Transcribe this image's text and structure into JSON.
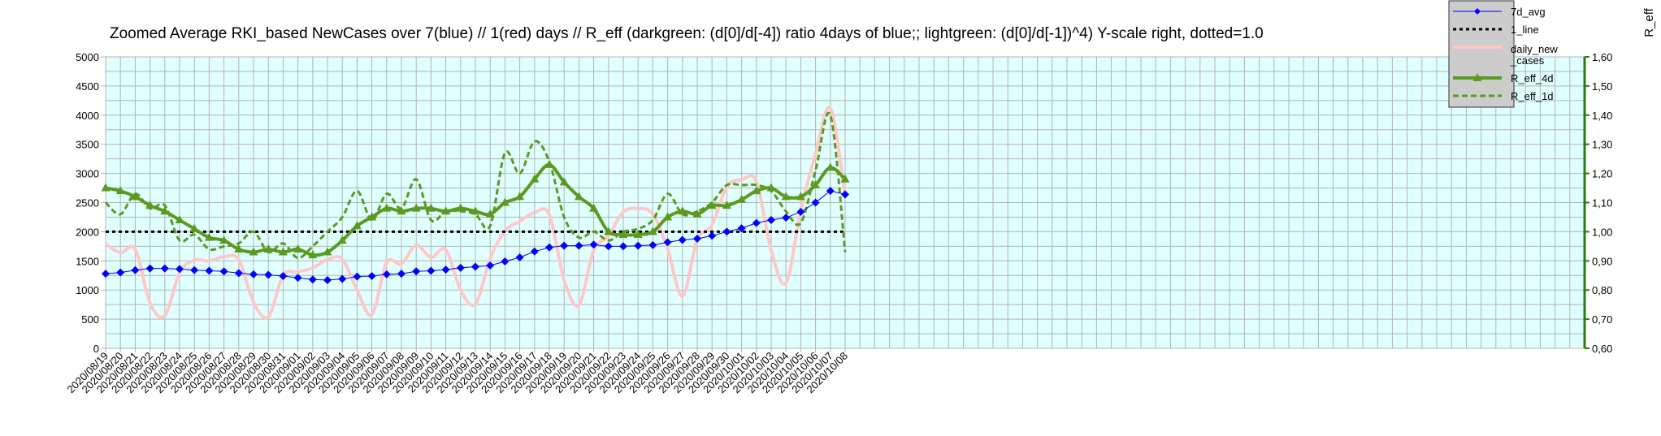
{
  "chart_data": {
    "type": "line",
    "title": "Zoomed Average RKI_based NewCases over 7(blue) // 1(red) days //  R_eff (darkgreen: (d[0]/d[-4]) ratio 4days of blue;; lightgreen: (d[0]/d[-1])^4) Y-scale right, dotted=1.0",
    "y2label": "R_eff",
    "ylim": [
      0,
      5000
    ],
    "y2lim": [
      0.6,
      1.6
    ],
    "yticks": [
      "0",
      "500",
      "1000",
      "1500",
      "2000",
      "2500",
      "3000",
      "3500",
      "4000",
      "4500",
      "5000"
    ],
    "y2ticks": [
      "0,60",
      "0,70",
      "0,80",
      "0,90",
      "1,00",
      "1,10",
      "1,20",
      "1,30",
      "1,40",
      "1,50",
      "1,60"
    ],
    "grid": true,
    "legend_position": "top-right",
    "categories": [
      "2020/08/19",
      "2020/08/20",
      "2020/08/21",
      "2020/08/22",
      "2020/08/23",
      "2020/08/24",
      "2020/08/25",
      "2020/08/26",
      "2020/08/27",
      "2020/08/28",
      "2020/08/29",
      "2020/08/30",
      "2020/08/31",
      "2020/09/01",
      "2020/09/02",
      "2020/09/03",
      "2020/09/04",
      "2020/09/05",
      "2020/09/06",
      "2020/09/07",
      "2020/09/08",
      "2020/09/09",
      "2020/09/10",
      "2020/09/11",
      "2020/09/12",
      "2020/09/13",
      "2020/09/14",
      "2020/09/15",
      "2020/09/16",
      "2020/09/17",
      "2020/09/18",
      "2020/09/19",
      "2020/09/20",
      "2020/09/21",
      "2020/09/22",
      "2020/09/23",
      "2020/09/24",
      "2020/09/25",
      "2020/09/26",
      "2020/09/27",
      "2020/09/28",
      "2020/09/29",
      "2020/09/30",
      "2020/10/01",
      "2020/10/02",
      "2020/10/03",
      "2020/10/04",
      "2020/10/05",
      "2020/10/06",
      "2020/10/07",
      "2020/10/08"
    ],
    "series": [
      {
        "name": "7d_avg",
        "axis": "left",
        "color": "#0000ff",
        "values": [
          1280,
          1300,
          1340,
          1370,
          1370,
          1360,
          1340,
          1330,
          1320,
          1290,
          1270,
          1260,
          1240,
          1210,
          1180,
          1170,
          1190,
          1230,
          1240,
          1270,
          1280,
          1320,
          1330,
          1350,
          1380,
          1400,
          1420,
          1490,
          1560,
          1660,
          1730,
          1760,
          1760,
          1780,
          1750,
          1750,
          1760,
          1770,
          1820,
          1860,
          1880,
          1930,
          2000,
          2060,
          2150,
          2200,
          2240,
          2340,
          2500,
          2700,
          2640
        ]
      },
      {
        "name": "1_line",
        "axis": "left",
        "color": "#000000",
        "values": [
          2000,
          2000,
          2000,
          2000,
          2000,
          2000,
          2000,
          2000,
          2000,
          2000,
          2000,
          2000,
          2000,
          2000,
          2000,
          2000,
          2000,
          2000,
          2000,
          2000,
          2000,
          2000,
          2000,
          2000,
          2000,
          2000,
          2000,
          2000,
          2000,
          2000,
          2000,
          2000,
          2000,
          2000,
          2000,
          2000,
          2000,
          2000,
          2000,
          2000,
          2000,
          2000,
          2000,
          2000,
          2000,
          2000,
          2000,
          2000,
          2000,
          2000,
          2000
        ]
      },
      {
        "name": "daily_new_cases",
        "axis": "left",
        "color": "#ffc8c8",
        "values": [
          1790,
          1640,
          1700,
          780,
          560,
          1300,
          1510,
          1500,
          1570,
          1520,
          790,
          540,
          1250,
          1310,
          1380,
          1520,
          1530,
          1000,
          580,
          1470,
          1450,
          1770,
          1560,
          1690,
          1000,
          760,
          1540,
          2010,
          2180,
          2330,
          2290,
          1170,
          740,
          1680,
          1930,
          2340,
          2400,
          2300,
          1710,
          890,
          1860,
          2120,
          2770,
          2890,
          2860,
          1680,
          1120,
          2370,
          3340,
          4120,
          2620
        ]
      },
      {
        "name": "R_eff_4d",
        "axis": "right",
        "color": "#5a9a1e",
        "values": [
          1.15,
          1.14,
          1.12,
          1.09,
          1.07,
          1.04,
          1.01,
          0.98,
          0.97,
          0.94,
          0.93,
          0.94,
          0.93,
          0.94,
          0.92,
          0.93,
          0.97,
          1.02,
          1.05,
          1.08,
          1.07,
          1.08,
          1.08,
          1.07,
          1.08,
          1.07,
          1.06,
          1.1,
          1.12,
          1.18,
          1.23,
          1.17,
          1.12,
          1.08,
          1.0,
          0.99,
          0.99,
          1.0,
          1.05,
          1.07,
          1.06,
          1.09,
          1.09,
          1.11,
          1.14,
          1.15,
          1.12,
          1.12,
          1.16,
          1.22,
          1.18
        ]
      },
      {
        "name": "R_eff_1d",
        "axis": "right",
        "color": "#5a9a1e",
        "values": [
          1.1,
          1.06,
          1.13,
          1.08,
          1.09,
          0.97,
          0.99,
          0.94,
          0.95,
          0.96,
          1.0,
          0.93,
          0.96,
          0.91,
          0.95,
          1.0,
          1.05,
          1.14,
          1.04,
          1.13,
          1.08,
          1.18,
          1.04,
          1.07,
          1.07,
          1.06,
          1.02,
          1.27,
          1.2,
          1.31,
          1.24,
          1.05,
          0.98,
          1.0,
          0.97,
          1.0,
          1.01,
          1.04,
          1.13,
          1.06,
          1.07,
          1.1,
          1.16,
          1.16,
          1.16,
          1.14,
          1.07,
          1.03,
          1.21,
          1.4,
          0.93
        ]
      }
    ],
    "legend": [
      {
        "label": "7d_avg",
        "style": "line-diamond",
        "color": "#0000ff"
      },
      {
        "label": "1_line",
        "style": "dotted",
        "color": "#000000"
      },
      {
        "label": "daily_new_cases",
        "lines": [
          "daily_new",
          "_cases"
        ],
        "style": "thick-line",
        "color": "#ffc8c8"
      },
      {
        "label": "R_eff_4d",
        "style": "line-triangle",
        "color": "#5a9a1e"
      },
      {
        "label": "R_eff_1d",
        "style": "dashed",
        "color": "#5a9a1e"
      }
    ]
  }
}
